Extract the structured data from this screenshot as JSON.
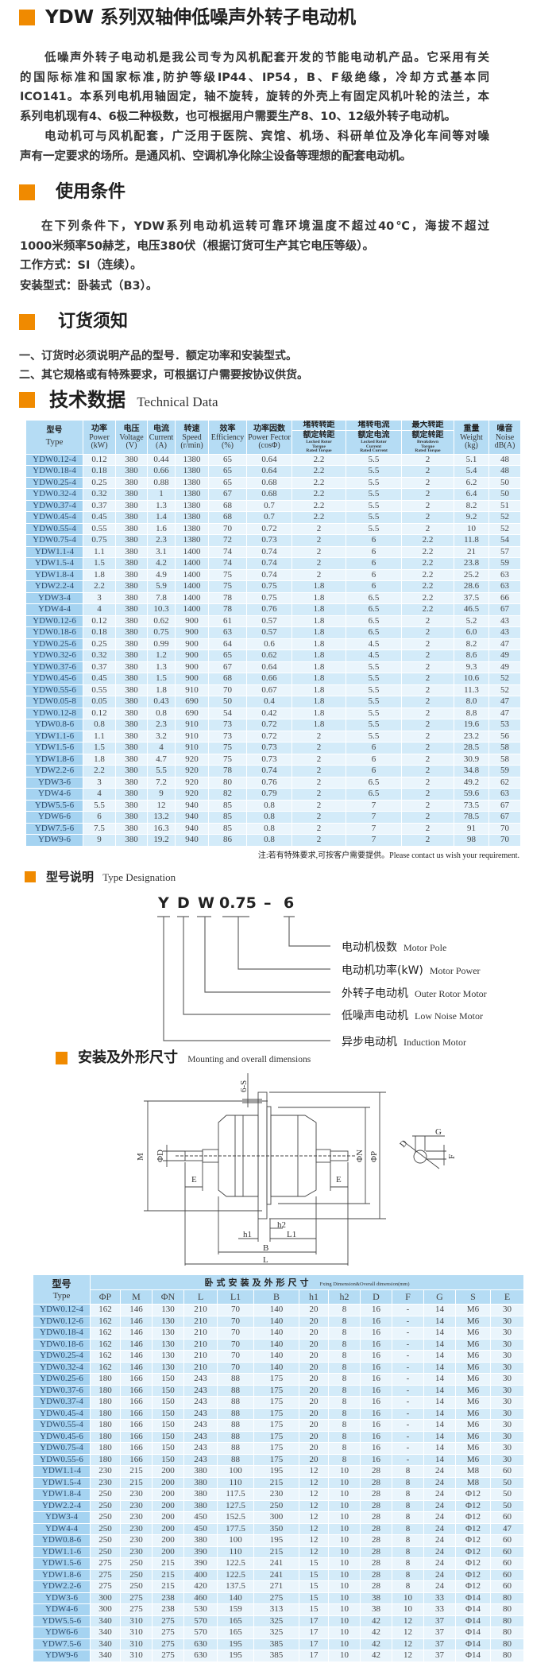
{
  "title": "YDW 系列双轴伸低噪声外转子电动机",
  "intro": {
    "lines": [
      "低噪声外转子电动机是我公司专为风机配套开发的节能电动机产品。它采用有关",
      "的国际标准和国家标准,防护等级IP44、IP54，B、F级绝缘，冷却方式基本同",
      "ICO141。本系列电机用轴固定，轴不旋转，旋转的外壳上有固定风机叶轮的法兰，本",
      "系列电机现有4、6极二种极数，也可根据用户需要生产8、10、12级外转子电动机。",
      "电动机可与风机配套，广泛用于医院、宾馆、机场、科研单位及净化车间等对噪",
      "声有一定要求的场所。是通风机、空调机净化除尘设备等理想的配套电动机。"
    ]
  },
  "conditions": {
    "heading": "使用条件",
    "lines": [
      "在下列条件下，YDW系列电动机运转可靠环境温度不超过40℃，海拔不超过",
      "1000米频率50赫芝，电压380伏（根据订货可生产其它电压等级）。",
      "工作方式：SI（连续）。",
      "安装型式：卧装式（B3）。"
    ]
  },
  "ordering": {
    "heading": "订货须知",
    "lines": [
      "一、订货时必须说明产品的型号．额定功率和安装型式。",
      "二、其它规格或有特殊要求，可根据订户需要按协议供货。"
    ]
  },
  "technical": {
    "heading": "技术数据",
    "heading_en": "Technical Data",
    "columns": [
      {
        "cn": [
          "型号"
        ],
        "en": [
          "Type"
        ]
      },
      {
        "cn": [
          "功率"
        ],
        "en": [
          "Power",
          "(kW)"
        ]
      },
      {
        "cn": [
          "电压"
        ],
        "en": [
          "Voltage",
          "(V)"
        ]
      },
      {
        "cn": [
          "电流"
        ],
        "en": [
          "Current",
          "(A)"
        ]
      },
      {
        "cn": [
          "转速"
        ],
        "en": [
          "Speed",
          "(r/min)"
        ]
      },
      {
        "cn": [
          "效率"
        ],
        "en": [
          "Efficiency",
          "(%)"
        ]
      },
      {
        "cn": [
          "功率因数"
        ],
        "en": [
          "Power Fector",
          "(cosΦ)"
        ]
      },
      {
        "cn": [
          "堵转转距",
          "额定转距"
        ],
        "en": [
          "Locked Rotor",
          "Torque",
          "Rated Torque"
        ]
      },
      {
        "cn": [
          "堵转电流",
          "额定电流"
        ],
        "en": [
          "Locked Rotor",
          "Current",
          "Rated Current"
        ]
      },
      {
        "cn": [
          "最大转距",
          "额定转距"
        ],
        "en": [
          "Breakdown",
          "Torque",
          "Rated Torque"
        ]
      },
      {
        "cn": [
          "重量"
        ],
        "en": [
          "Weight",
          "(kg)"
        ]
      },
      {
        "cn": [
          "噪音"
        ],
        "en": [
          "Noise",
          "dB(A)"
        ]
      }
    ],
    "rows": [
      [
        "YDW0.12-4",
        "0.12",
        "380",
        "0.44",
        "1380",
        "65",
        "0.64",
        "2.2",
        "5.5",
        "2",
        "5.1",
        "48"
      ],
      [
        "YDW0.18-4",
        "0.18",
        "380",
        "0.66",
        "1380",
        "65",
        "0.64",
        "2.2",
        "5.5",
        "2",
        "5.4",
        "48"
      ],
      [
        "YDW0.25-4",
        "0.25",
        "380",
        "0.88",
        "1380",
        "65",
        "0.68",
        "2.2",
        "5.5",
        "2",
        "6.2",
        "50"
      ],
      [
        "YDW0.32-4",
        "0.32",
        "380",
        "1",
        "1380",
        "67",
        "0.68",
        "2.2",
        "5.5",
        "2",
        "6.4",
        "50"
      ],
      [
        "YDW0.37-4",
        "0.37",
        "380",
        "1.3",
        "1380",
        "68",
        "0.7",
        "2.2",
        "5.5",
        "2",
        "8.2",
        "51"
      ],
      [
        "YDW0.45-4",
        "0.45",
        "380",
        "1.4",
        "1380",
        "68",
        "0.7",
        "2.2",
        "5.5",
        "2",
        "9.2",
        "52"
      ],
      [
        "YDW0.55-4",
        "0.55",
        "380",
        "1.6",
        "1380",
        "70",
        "0.72",
        "2",
        "5.5",
        "2",
        "10",
        "52"
      ],
      [
        "YDW0.75-4",
        "0.75",
        "380",
        "2.3",
        "1380",
        "72",
        "0.73",
        "2",
        "6",
        "2.2",
        "11.8",
        "54"
      ],
      [
        "YDW1.1-4",
        "1.1",
        "380",
        "3.1",
        "1400",
        "74",
        "0.74",
        "2",
        "6",
        "2.2",
        "21",
        "57"
      ],
      [
        "YDW1.5-4",
        "1.5",
        "380",
        "4.2",
        "1400",
        "74",
        "0.74",
        "2",
        "6",
        "2.2",
        "23.8",
        "59"
      ],
      [
        "YDW1.8-4",
        "1.8",
        "380",
        "4.9",
        "1400",
        "75",
        "0.74",
        "2",
        "6",
        "2.2",
        "25.2",
        "63"
      ],
      [
        "YDW2.2-4",
        "2.2",
        "380",
        "5.9",
        "1400",
        "75",
        "0.75",
        "1.8",
        "6",
        "2.2",
        "28.6",
        "63"
      ],
      [
        "YDW3-4",
        "3",
        "380",
        "7.8",
        "1400",
        "78",
        "0.75",
        "1.8",
        "6.5",
        "2.2",
        "37.5",
        "66"
      ],
      [
        "YDW4-4",
        "4",
        "380",
        "10.3",
        "1400",
        "78",
        "0.76",
        "1.8",
        "6.5",
        "2.2",
        "46.5",
        "67"
      ],
      [
        "YDW0.12-6",
        "0.12",
        "380",
        "0.62",
        "900",
        "61",
        "0.57",
        "1.8",
        "6.5",
        "2",
        "5.2",
        "43"
      ],
      [
        "YDW0.18-6",
        "0.18",
        "380",
        "0.75",
        "900",
        "63",
        "0.57",
        "1.8",
        "6.5",
        "2",
        "6.0",
        "43"
      ],
      [
        "YDW0.25-6",
        "0.25",
        "380",
        "0.99",
        "900",
        "64",
        "0.6",
        "1.8",
        "4.5",
        "2",
        "8.2",
        "47"
      ],
      [
        "YDW0.32-6",
        "0.32",
        "380",
        "1.2",
        "900",
        "65",
        "0.62",
        "1.8",
        "4.5",
        "2",
        "8.6",
        "49"
      ],
      [
        "YDW0.37-6",
        "0.37",
        "380",
        "1.3",
        "900",
        "67",
        "0.64",
        "1.8",
        "5.5",
        "2",
        "9.3",
        "49"
      ],
      [
        "YDW0.45-6",
        "0.45",
        "380",
        "1.5",
        "900",
        "68",
        "0.66",
        "1.8",
        "5.5",
        "2",
        "10.6",
        "52"
      ],
      [
        "YDW0.55-6",
        "0.55",
        "380",
        "1.8",
        "910",
        "70",
        "0.67",
        "1.8",
        "5.5",
        "2",
        "11.3",
        "52"
      ],
      [
        "YDW0.05-8",
        "0.05",
        "380",
        "0.43",
        "690",
        "50",
        "0.4",
        "1.8",
        "5.5",
        "2",
        "8.0",
        "47"
      ],
      [
        "YDW0.12-8",
        "0.12",
        "380",
        "0.8",
        "690",
        "54",
        "0.42",
        "1.8",
        "5.5",
        "2",
        "8.8",
        "47"
      ],
      [
        "YDW0.8-6",
        "0.8",
        "380",
        "2.3",
        "910",
        "73",
        "0.72",
        "1.8",
        "5.5",
        "2",
        "19.6",
        "53"
      ],
      [
        "YDW1.1-6",
        "1.1",
        "380",
        "3.2",
        "910",
        "73",
        "0.72",
        "2",
        "5.5",
        "2",
        "23.2",
        "56"
      ],
      [
        "YDW1.5-6",
        "1.5",
        "380",
        "4",
        "910",
        "75",
        "0.73",
        "2",
        "6",
        "2",
        "28.5",
        "58"
      ],
      [
        "YDW1.8-6",
        "1.8",
        "380",
        "4.7",
        "920",
        "75",
        "0.73",
        "2",
        "6",
        "2",
        "30.9",
        "58"
      ],
      [
        "YDW2.2-6",
        "2.2",
        "380",
        "5.5",
        "920",
        "78",
        "0.74",
        "2",
        "6",
        "2",
        "34.8",
        "59"
      ],
      [
        "YDW3-6",
        "3",
        "380",
        "7.2",
        "920",
        "80",
        "0.76",
        "2",
        "6.5",
        "2",
        "49.2",
        "62"
      ],
      [
        "YDW4-6",
        "4",
        "380",
        "9",
        "920",
        "82",
        "0.79",
        "2",
        "6.5",
        "2",
        "59.6",
        "63"
      ],
      [
        "YDW5.5-6",
        "5.5",
        "380",
        "12",
        "940",
        "85",
        "0.8",
        "2",
        "7",
        "2",
        "73.5",
        "67"
      ],
      [
        "YDW6-6",
        "6",
        "380",
        "13.2",
        "940",
        "85",
        "0.8",
        "2",
        "7",
        "2",
        "78.5",
        "67"
      ],
      [
        "YDW7.5-6",
        "7.5",
        "380",
        "16.3",
        "940",
        "85",
        "0.8",
        "2",
        "7",
        "2",
        "91",
        "70"
      ],
      [
        "YDW9-6",
        "9",
        "380",
        "19.2",
        "940",
        "86",
        "0.8",
        "2",
        "7",
        "2",
        "98",
        "70"
      ]
    ],
    "note": "注:若有特殊要求,可按客户需要提供。Please contact us wish your requirement."
  },
  "designation": {
    "heading": "型号说明",
    "heading_en": "Type Designation",
    "code": [
      "Y",
      "D",
      "W",
      "0.75",
      "–",
      "6"
    ],
    "labels": [
      {
        "cn": "电动机极数",
        "en": "Motor Pole"
      },
      {
        "cn": "电动机功率(kW)",
        "en": "Motor  Power"
      },
      {
        "cn": "外转子电动机",
        "en": "Outer Rotor Motor"
      },
      {
        "cn": "低噪声电动机",
        "en": "Low Noise Motor"
      },
      {
        "cn": "异步电动机",
        "en": "Induction Motor"
      }
    ]
  },
  "mounting": {
    "heading": "安装及外形尺寸",
    "heading_en": "Mounting and overall dimensions",
    "diagram_labels": {
      "s": "6-S",
      "m": "M",
      "d": "ΦD",
      "n": "ΦN",
      "p": "ΦP",
      "e_left": "E",
      "e_right": "E",
      "h1": "h1",
      "h2": "h2",
      "l1": "L1",
      "b": "B",
      "l": "L",
      "g": "G",
      "f": "F",
      "d2": "D"
    },
    "type_header": {
      "cn": "型号",
      "en": "Type"
    },
    "group_header": "卧式安装及外形尺寸",
    "group_header_en": "Fxing Dimension&Overall dimension(mm)",
    "columns": [
      "ΦP",
      "M",
      "ΦN",
      "L",
      "L1",
      "B",
      "h1",
      "h2",
      "D",
      "F",
      "G",
      "S",
      "E"
    ],
    "rows": [
      [
        "YDW0.12-4",
        "162",
        "146",
        "130",
        "210",
        "70",
        "140",
        "20",
        "8",
        "16",
        "-",
        "14",
        "M6",
        "30"
      ],
      [
        "YDW0.12-6",
        "162",
        "146",
        "130",
        "210",
        "70",
        "140",
        "20",
        "8",
        "16",
        "-",
        "14",
        "M6",
        "30"
      ],
      [
        "YDW0.18-4",
        "162",
        "146",
        "130",
        "210",
        "70",
        "140",
        "20",
        "8",
        "16",
        "-",
        "14",
        "M6",
        "30"
      ],
      [
        "YDW0.18-6",
        "162",
        "146",
        "130",
        "210",
        "70",
        "140",
        "20",
        "8",
        "16",
        "-",
        "14",
        "M6",
        "30"
      ],
      [
        "YDW0.25-4",
        "162",
        "146",
        "130",
        "210",
        "70",
        "140",
        "20",
        "8",
        "16",
        "-",
        "14",
        "M6",
        "30"
      ],
      [
        "YDW0.32-4",
        "162",
        "146",
        "130",
        "210",
        "70",
        "140",
        "20",
        "8",
        "16",
        "-",
        "14",
        "M6",
        "30"
      ],
      [
        "YDW0.25-6",
        "180",
        "166",
        "150",
        "243",
        "88",
        "175",
        "20",
        "8",
        "16",
        "-",
        "14",
        "M6",
        "30"
      ],
      [
        "YDW0.37-6",
        "180",
        "166",
        "150",
        "243",
        "88",
        "175",
        "20",
        "8",
        "16",
        "-",
        "14",
        "M6",
        "30"
      ],
      [
        "YDW0.37-4",
        "180",
        "166",
        "150",
        "243",
        "88",
        "175",
        "20",
        "8",
        "16",
        "-",
        "14",
        "M6",
        "30"
      ],
      [
        "YDW0.45-4",
        "180",
        "166",
        "150",
        "243",
        "88",
        "175",
        "20",
        "8",
        "16",
        "-",
        "14",
        "M6",
        "30"
      ],
      [
        "YDW0.55-4",
        "180",
        "166",
        "150",
        "243",
        "88",
        "175",
        "20",
        "8",
        "16",
        "-",
        "14",
        "M6",
        "30"
      ],
      [
        "YDW0.45-6",
        "180",
        "166",
        "150",
        "243",
        "88",
        "175",
        "20",
        "8",
        "16",
        "-",
        "14",
        "M6",
        "30"
      ],
      [
        "YDW0.75-4",
        "180",
        "166",
        "150",
        "243",
        "88",
        "175",
        "20",
        "8",
        "16",
        "-",
        "14",
        "M6",
        "30"
      ],
      [
        "YDW0.55-6",
        "180",
        "166",
        "150",
        "243",
        "88",
        "175",
        "20",
        "8",
        "16",
        "-",
        "14",
        "M6",
        "30"
      ],
      [
        "YDW1.1-4",
        "230",
        "215",
        "200",
        "380",
        "100",
        "195",
        "12",
        "10",
        "28",
        "8",
        "24",
        "M8",
        "60"
      ],
      [
        "YDW1.5-4",
        "230",
        "215",
        "200",
        "380",
        "110",
        "215",
        "12",
        "10",
        "28",
        "8",
        "24",
        "M8",
        "50"
      ],
      [
        "YDW1.8-4",
        "250",
        "230",
        "200",
        "380",
        "117.5",
        "230",
        "12",
        "10",
        "28",
        "8",
        "24",
        "Φ12",
        "50"
      ],
      [
        "YDW2.2-4",
        "250",
        "230",
        "200",
        "380",
        "127.5",
        "250",
        "12",
        "10",
        "28",
        "8",
        "24",
        "Φ12",
        "50"
      ],
      [
        "YDW3-4",
        "250",
        "230",
        "200",
        "450",
        "152.5",
        "300",
        "12",
        "10",
        "28",
        "8",
        "24",
        "Φ12",
        "60"
      ],
      [
        "YDW4-4",
        "250",
        "230",
        "200",
        "450",
        "177.5",
        "350",
        "12",
        "10",
        "28",
        "8",
        "24",
        "Φ12",
        "47"
      ],
      [
        "YDW0.8-6",
        "250",
        "230",
        "200",
        "380",
        "100",
        "195",
        "12",
        "10",
        "28",
        "8",
        "24",
        "Φ12",
        "60"
      ],
      [
        "YDW1.1-6",
        "250",
        "230",
        "200",
        "390",
        "110",
        "215",
        "12",
        "10",
        "28",
        "8",
        "24",
        "Φ12",
        "60"
      ],
      [
        "YDW1.5-6",
        "275",
        "250",
        "215",
        "390",
        "122.5",
        "241",
        "15",
        "10",
        "28",
        "8",
        "24",
        "Φ12",
        "60"
      ],
      [
        "YDW1.8-6",
        "275",
        "250",
        "215",
        "400",
        "122.5",
        "241",
        "15",
        "10",
        "28",
        "8",
        "24",
        "Φ12",
        "60"
      ],
      [
        "YDW2.2-6",
        "275",
        "250",
        "215",
        "420",
        "137.5",
        "271",
        "15",
        "10",
        "28",
        "8",
        "24",
        "Φ12",
        "60"
      ],
      [
        "YDW3-6",
        "300",
        "275",
        "238",
        "460",
        "140",
        "275",
        "15",
        "10",
        "38",
        "10",
        "33",
        "Φ14",
        "80"
      ],
      [
        "YDW4-6",
        "300",
        "275",
        "238",
        "530",
        "159",
        "313",
        "15",
        "10",
        "38",
        "10",
        "33",
        "Φ14",
        "80"
      ],
      [
        "YDW5.5-6",
        "340",
        "310",
        "275",
        "570",
        "165",
        "325",
        "17",
        "10",
        "42",
        "12",
        "37",
        "Φ14",
        "80"
      ],
      [
        "YDW6-6",
        "340",
        "310",
        "275",
        "570",
        "165",
        "325",
        "17",
        "10",
        "42",
        "12",
        "37",
        "Φ14",
        "80"
      ],
      [
        "YDW7.5-6",
        "340",
        "310",
        "275",
        "630",
        "195",
        "385",
        "17",
        "10",
        "42",
        "12",
        "37",
        "Φ14",
        "80"
      ],
      [
        "YDW9-6",
        "340",
        "310",
        "275",
        "630",
        "195",
        "385",
        "17",
        "10",
        "42",
        "12",
        "37",
        "Φ14",
        "80"
      ]
    ]
  },
  "colors": {
    "accent": "#f08a00",
    "header_bg": "#b5dcf4",
    "type_col_bg": "#a5d3f1",
    "row_light": "#eaf5fc",
    "row_dark": "#d3ebf9"
  }
}
